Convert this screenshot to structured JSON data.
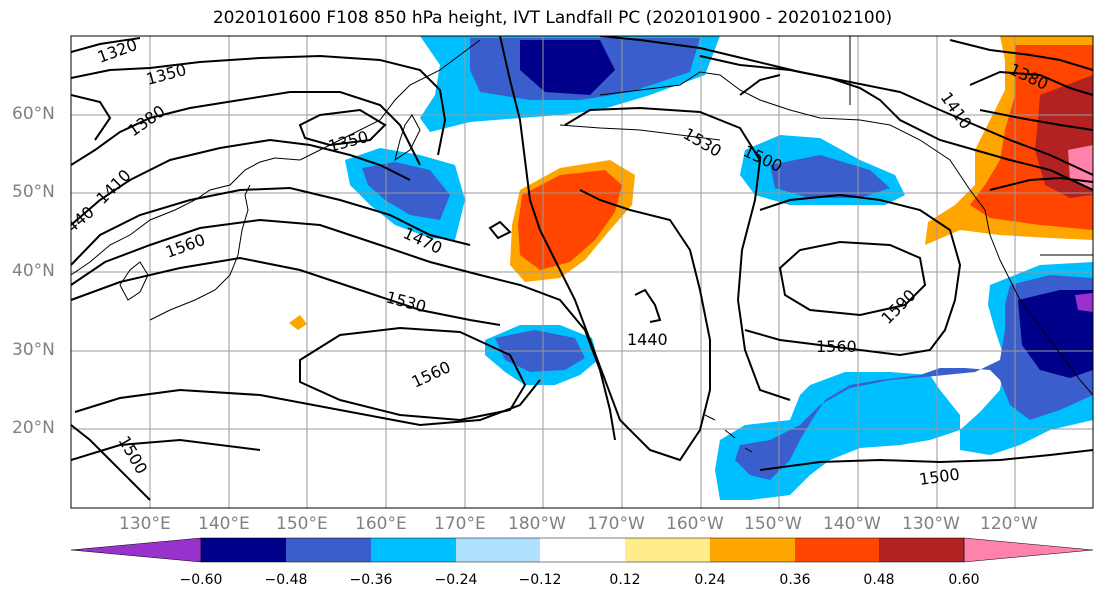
{
  "title": "2020101600 F108 850 hPa height, IVT Landfall PC (2020101900 - 2020102100)",
  "lat_labels": [
    "60°N",
    "50°N",
    "40°N",
    "30°N",
    "20°N"
  ],
  "lon_labels": [
    "130°E",
    "140°E",
    "150°E",
    "160°E",
    "170°E",
    "180°W",
    "170°W",
    "160°W",
    "150°W",
    "140°W",
    "130°W",
    "120°W"
  ],
  "contour_labels": [
    "1320",
    "1350",
    "1380",
    "1410",
    "1440",
    "1470",
    "1500",
    "1530",
    "1560",
    "1590",
    "1350",
    "1530",
    "1500",
    "1410",
    "1380",
    "1560",
    "1560",
    "1440",
    "1500",
    "1500",
    "1530",
    "1590"
  ],
  "colorbar": {
    "ticks": [
      "−0.60",
      "−0.48",
      "−0.36",
      "−0.24",
      "−0.12",
      "0.12",
      "0.24",
      "0.36",
      "0.48",
      "0.60"
    ],
    "colors": [
      "#9932cc",
      "#00008b",
      "#3a5fcd",
      "#00bfff",
      "#b0e2ff",
      "#ffffff",
      "#ffec8b",
      "#ffa500",
      "#ff4500",
      "#b22222",
      "#ff82ab"
    ]
  },
  "colors": {
    "blue_light": "#00bfff",
    "blue_mid": "#3a5fcd",
    "blue_dark": "#00008b",
    "orange": "#ffa500",
    "red_orange": "#ff4500",
    "dark_red": "#b22222",
    "pink": "#ff82ab",
    "yellow": "#ffec8b",
    "purple": "#9932cc"
  }
}
